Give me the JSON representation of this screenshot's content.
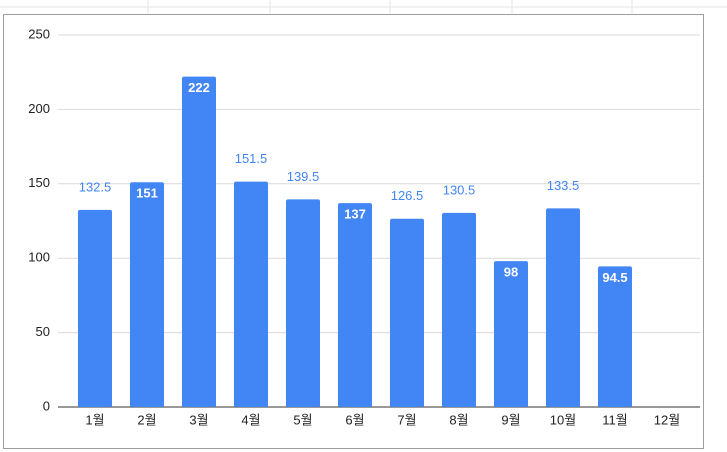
{
  "chart_data": {
    "type": "bar",
    "categories": [
      "1월",
      "2월",
      "3월",
      "4월",
      "5월",
      "6월",
      "7월",
      "8월",
      "9월",
      "10월",
      "11월",
      "12월"
    ],
    "values": [
      132.5,
      151,
      222,
      151.5,
      139.5,
      137,
      126.5,
      130.5,
      98,
      133.5,
      94.5,
      null
    ],
    "label_positions": [
      "outside",
      "inside",
      "inside",
      "outside",
      "outside",
      "inside",
      "outside",
      "outside",
      "inside",
      "outside",
      "inside",
      "outside"
    ],
    "color": "#4285f4",
    "ylim": [
      0,
      250
    ],
    "yticks": [
      0,
      50,
      100,
      150,
      200,
      250
    ],
    "grid": true
  }
}
